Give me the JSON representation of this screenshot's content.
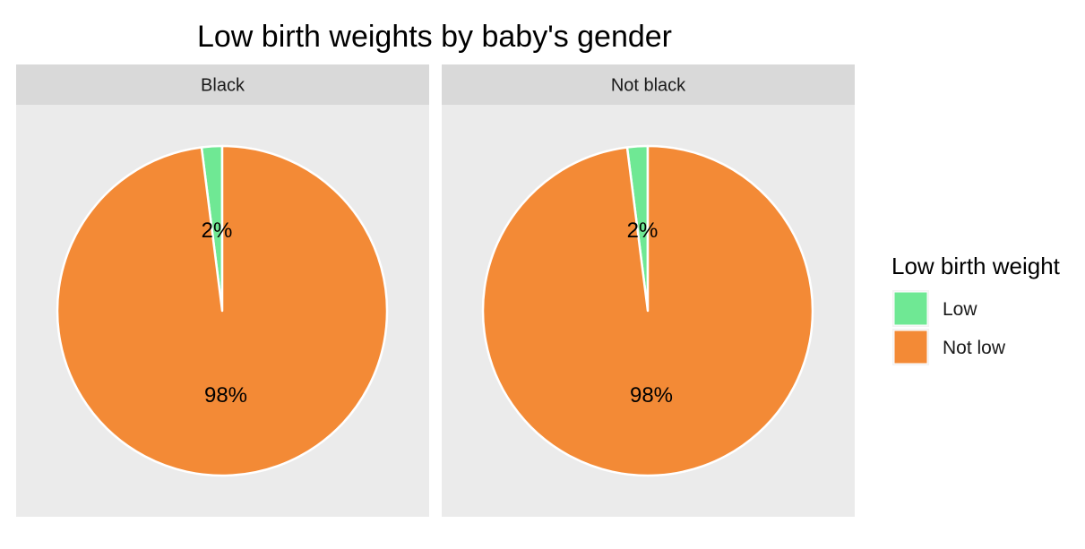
{
  "chart_data": {
    "type": "pie",
    "title": "Low birth weights by baby's gender",
    "legend": {
      "title": "Low birth weight",
      "position": "right",
      "entries": [
        {
          "label": "Low",
          "color": "#6fe894"
        },
        {
          "label": "Not low",
          "color": "#f38a36"
        }
      ]
    },
    "panels": [
      {
        "name": "Black",
        "slices": [
          {
            "category": "Low",
            "value": 2,
            "label": "2%"
          },
          {
            "category": "Not low",
            "value": 98,
            "label": "98%"
          }
        ]
      },
      {
        "name": "Not black",
        "slices": [
          {
            "category": "Low",
            "value": 2,
            "label": "2%"
          },
          {
            "category": "Not low",
            "value": 98,
            "label": "98%"
          }
        ]
      }
    ],
    "colors": {
      "panel_background": "#ebebeb",
      "strip_background": "#d9d9d9",
      "slice_border": "#ffffff"
    }
  }
}
